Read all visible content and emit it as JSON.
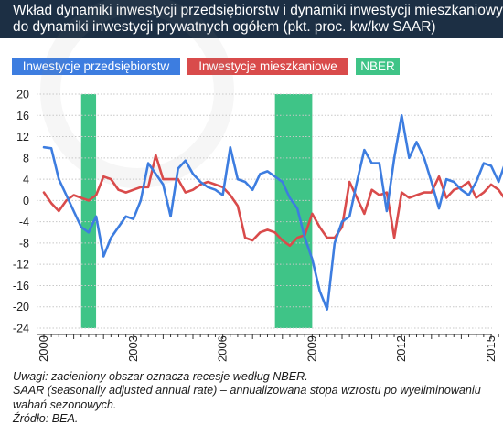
{
  "title": {
    "line1": "Wkład dynamiki inwestycji przedsiębiorstw i dynamiki inwestycji mieszkaniowych",
    "line2": "do dynamiki inwestycji prywatnych ogółem (pkt. proc. kw/kw SAAR)"
  },
  "legend": [
    {
      "label": "Inwestycje przedsiębiorstw",
      "color": "#3d7de0"
    },
    {
      "label": "Inwestycje mieszkaniowe",
      "color": "#d94b4b"
    },
    {
      "label": "NBER",
      "color": "#3fc487"
    }
  ],
  "notes": [
    "Uwagi: zacieniony obszar oznacza recesje według NBER.",
    "SAAR (seasonally adjusted annual rate) – annualizowana stopa wzrostu po wyeliminowaniu",
    "wahań sezonowych.",
    "Źródło: BEA."
  ],
  "chart_data": {
    "type": "line",
    "x_start": 2000.0,
    "x_step": 0.25,
    "xlim": [
      2000.0,
      2015.25
    ],
    "ylim": [
      -24,
      20
    ],
    "yticks": [
      20,
      16,
      12,
      8,
      4,
      0,
      -4,
      -8,
      -12,
      -16,
      -20,
      -24
    ],
    "xticks": [
      2000,
      2003,
      2006,
      2009,
      2012,
      2015
    ],
    "grid": true,
    "recessions": [
      [
        2001.25,
        2001.75
      ],
      [
        2007.75,
        2009.0
      ]
    ],
    "series": [
      {
        "name": "Inwestycje przedsiębiorstw",
        "color": "#3d7de0",
        "values": [
          10,
          9.8,
          4,
          1,
          -2,
          -5,
          -6,
          -3,
          -10.5,
          -7,
          -5,
          -3,
          -3.5,
          0,
          7,
          5,
          3,
          -3,
          6,
          7.5,
          5,
          3.5,
          2.5,
          2,
          1,
          10,
          4,
          3.5,
          2,
          5,
          5.5,
          4.5,
          3.5,
          0.5,
          -1.5,
          -7,
          -11,
          -17,
          -20.5,
          -8,
          -4,
          -3,
          3.5,
          9.5,
          7,
          7,
          -2,
          8,
          16,
          8,
          11,
          8,
          3.5,
          -1.5,
          4,
          3.5,
          2,
          1,
          3.5,
          7,
          6.5,
          3.5,
          7.5,
          1,
          2,
          3.5,
          3,
          -1
        ]
      },
      {
        "name": "Inwestycje mieszkaniowe",
        "color": "#d94b4b",
        "values": [
          1.5,
          -0.5,
          -2,
          0,
          1,
          0.5,
          0,
          1,
          4.5,
          4,
          2,
          1.5,
          2,
          2.5,
          2.5,
          8.5,
          4,
          4,
          4,
          1.5,
          2,
          3,
          3.5,
          3,
          2.5,
          1,
          -1,
          -7,
          -7.5,
          -6,
          -5.5,
          -6,
          -7.5,
          -8.5,
          -7,
          -6.5,
          -2.5,
          -5,
          -7,
          -7,
          -5,
          3.5,
          0.5,
          -2.5,
          2,
          1,
          1.5,
          -7,
          1.5,
          0.5,
          1,
          1.5,
          1.5,
          4.5,
          0.5,
          2,
          2.5,
          3.5,
          0.5,
          1.5,
          3,
          2,
          0,
          1.5,
          1,
          1.5,
          1.5,
          1.5
        ]
      }
    ]
  }
}
